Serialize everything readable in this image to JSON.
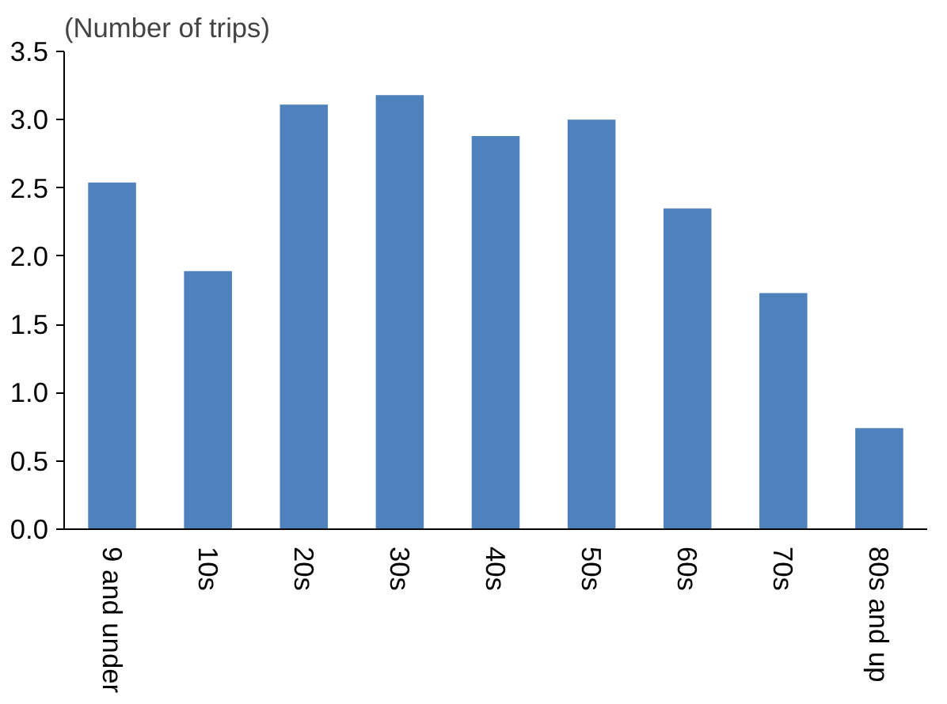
{
  "chart_data": {
    "type": "bar",
    "ylabel": "(Number of trips)",
    "categories": [
      "9 and under",
      "10s",
      "20s",
      "30s",
      "40s",
      "50s",
      "60s",
      "70s",
      "80s and up"
    ],
    "values": [
      2.54,
      1.89,
      3.11,
      3.18,
      2.88,
      3.0,
      2.35,
      1.73,
      0.74
    ],
    "color": "#4f81bd",
    "ylim": [
      0,
      3.5
    ],
    "yticks": [
      {
        "value": 0,
        "label": "0.0"
      },
      {
        "value": 0.5,
        "label": "0.5"
      },
      {
        "value": 1,
        "label": "1.0"
      },
      {
        "value": 1.5,
        "label": "1.5"
      },
      {
        "value": 2,
        "label": "2.0"
      },
      {
        "value": 2.5,
        "label": "2.5"
      },
      {
        "value": 3,
        "label": "3.0"
      },
      {
        "value": 3.5,
        "label": "3.5"
      }
    ],
    "grid": false
  }
}
